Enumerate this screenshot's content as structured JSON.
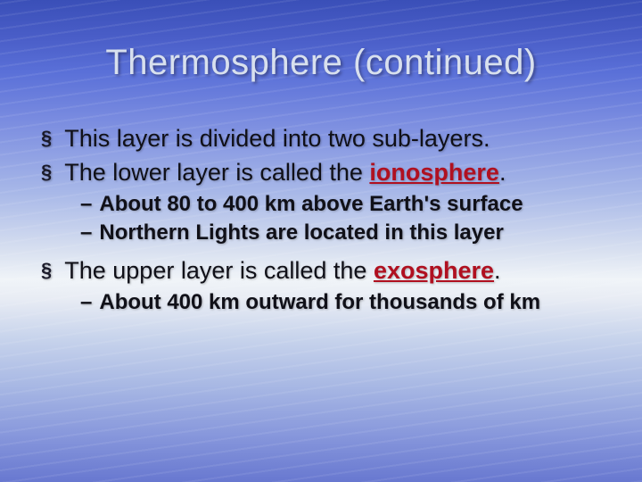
{
  "title": "Thermosphere (continued)",
  "styling": {
    "slide_width": 720,
    "slide_height": 540,
    "background_gradient": [
      "#3a4fb8",
      "#4a5ec8",
      "#5a70d8",
      "#7a8ce0",
      "#a8b8e8",
      "#d8e0f0",
      "#f0f4f8",
      "#e8ecf4",
      "#c8d4ec",
      "#a8b8e4",
      "#8898dc",
      "#6878d0"
    ],
    "title_color": "#d8e0ee",
    "title_fontsize": 40,
    "body_color": "#101018",
    "body_fontsize": 27,
    "sub_fontsize": 24,
    "keyword_color": "#b01020",
    "bullet_glyph": "§",
    "sub_glyph": "–",
    "font_family": "Arial"
  },
  "bullets": {
    "b1_text": "This layer is divided into two sub-layers.",
    "b2_pre": "The lower layer is called the ",
    "b2_keyword": "ionosphere",
    "b2_post": ".",
    "b2_sub1": "About 80 to 400 km above Earth's surface",
    "b2_sub2": "Northern Lights are located in this layer",
    "b3_pre": "The upper layer is called the ",
    "b3_keyword": "exosphere",
    "b3_post": ".",
    "b3_sub1": "About 400 km outward for thousands of km"
  }
}
